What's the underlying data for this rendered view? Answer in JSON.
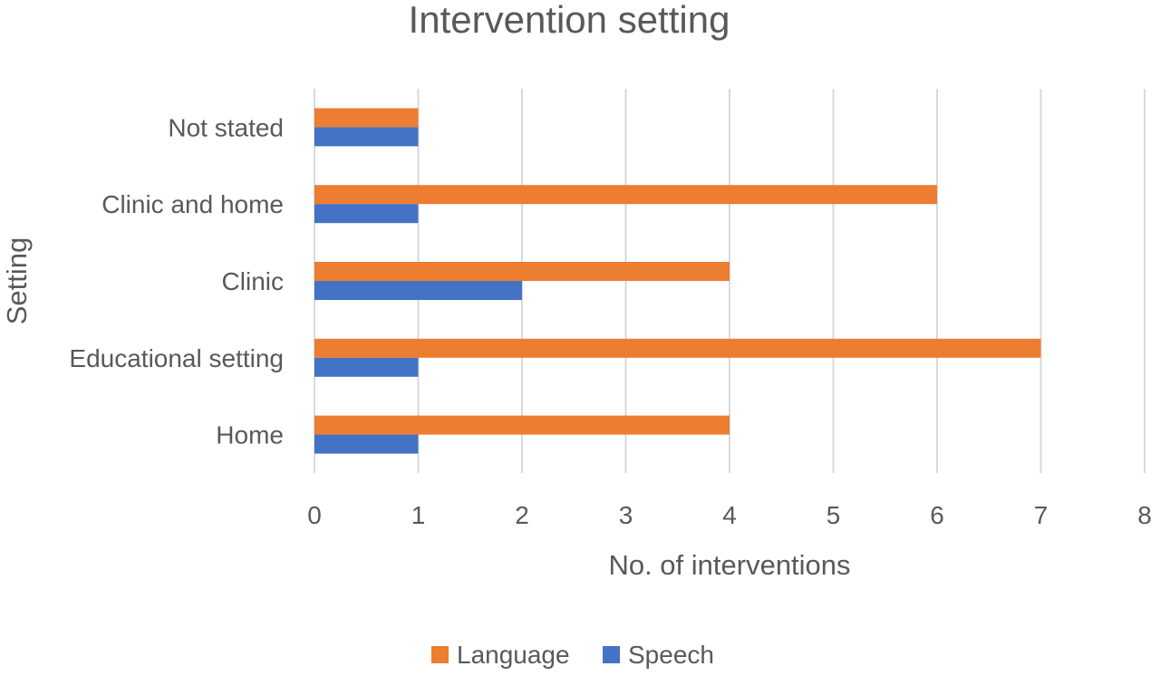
{
  "chart_data": {
    "type": "bar",
    "orientation": "horizontal",
    "title": "Intervention setting",
    "xlabel": "No. of interventions",
    "ylabel": "Setting",
    "categories": [
      "Not stated",
      "Clinic and home",
      "Clinic",
      "Educational setting",
      "Home"
    ],
    "series": [
      {
        "name": "Language",
        "values": [
          1,
          6,
          4,
          7,
          4
        ],
        "color": "#ED7D31"
      },
      {
        "name": "Speech",
        "values": [
          1,
          1,
          2,
          1,
          1
        ],
        "color": "#4472C4"
      }
    ],
    "xlim": [
      0,
      8
    ],
    "xticks": [
      "0",
      "1",
      "2",
      "3",
      "4",
      "5",
      "6",
      "7",
      "8"
    ],
    "grid": true,
    "legend_position": "bottom"
  }
}
